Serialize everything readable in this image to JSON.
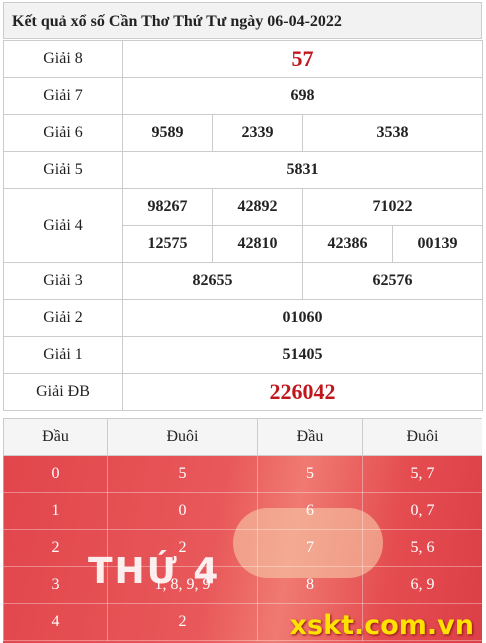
{
  "header": {
    "title": "Kết quả xổ số Cần Thơ Thứ Tư ngày 06-04-2022"
  },
  "prizes": [
    {
      "name": "Giải 8",
      "rows": [
        [
          "57"
        ]
      ],
      "highlight": true
    },
    {
      "name": "Giải 7",
      "rows": [
        [
          "698"
        ]
      ]
    },
    {
      "name": "Giải 6",
      "rows": [
        [
          "9589",
          "2339",
          "3538"
        ]
      ]
    },
    {
      "name": "Giải 5",
      "rows": [
        [
          "5831"
        ]
      ]
    },
    {
      "name": "Giải 4",
      "rows": [
        [
          "98267",
          "42892",
          "71022"
        ],
        [
          "12575",
          "42810",
          "42386",
          "00139"
        ]
      ]
    },
    {
      "name": "Giải 3",
      "rows": [
        [
          "82655",
          "62576"
        ]
      ]
    },
    {
      "name": "Giải 2",
      "rows": [
        [
          "01060"
        ]
      ]
    },
    {
      "name": "Giải 1",
      "rows": [
        [
          "51405"
        ]
      ]
    },
    {
      "name": "Giải ĐB",
      "rows": [
        [
          "226042"
        ]
      ],
      "highlight": true
    }
  ],
  "loto": {
    "headers": [
      "Đầu",
      "Đuôi",
      "Đầu",
      "Đuôi"
    ],
    "rows": [
      [
        "0",
        "5",
        "5",
        "5, 7"
      ],
      [
        "1",
        "0",
        "6",
        "0, 7"
      ],
      [
        "2",
        "2",
        "7",
        "5, 6"
      ],
      [
        "3",
        "1, 8, 9, 9",
        "8",
        "6, 9"
      ],
      [
        "4",
        "2"
      ]
    ]
  },
  "banner": {
    "day": "THỨ 4",
    "site": "xskt.com.vn"
  }
}
